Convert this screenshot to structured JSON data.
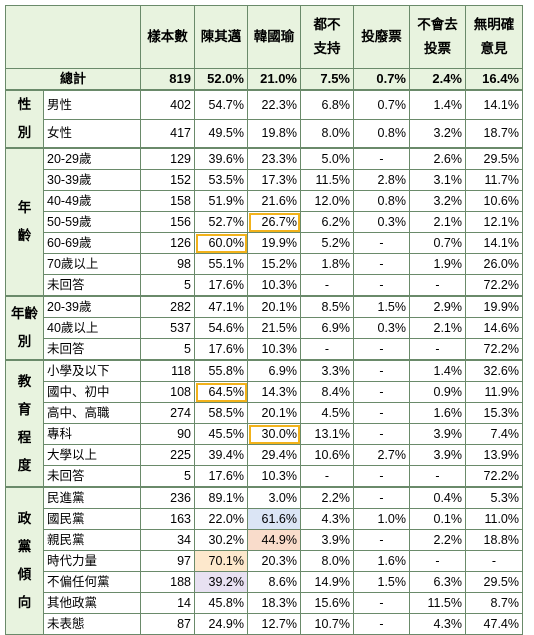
{
  "headers": [
    "樣本數",
    "陳其邁",
    "韓國瑜",
    [
      "都不",
      "支持"
    ],
    "投廢票",
    [
      "不會去",
      "投票"
    ],
    [
      "無明確",
      "意見"
    ]
  ],
  "total": {
    "label": "總計",
    "values": [
      "819",
      "52.0%",
      "21.0%",
      "7.5%",
      "0.7%",
      "2.4%",
      "16.4%"
    ]
  },
  "groups": [
    {
      "name": [
        "性",
        "別"
      ],
      "rows": [
        {
          "label": "男性",
          "values": [
            "402",
            "54.7%",
            "22.3%",
            "6.8%",
            "0.7%",
            "1.4%",
            "14.1%"
          ]
        },
        {
          "label": "女性",
          "values": [
            "417",
            "49.5%",
            "19.8%",
            "8.0%",
            "0.8%",
            "3.2%",
            "18.7%"
          ]
        }
      ]
    },
    {
      "name": [
        "年",
        "齡"
      ],
      "rows": [
        {
          "label": "20-29歲",
          "values": [
            "129",
            "39.6%",
            "23.3%",
            "5.0%",
            "-",
            "2.6%",
            "29.5%"
          ]
        },
        {
          "label": "30-39歲",
          "values": [
            "152",
            "53.5%",
            "17.3%",
            "11.5%",
            "2.8%",
            "3.1%",
            "11.7%"
          ]
        },
        {
          "label": "40-49歲",
          "values": [
            "158",
            "51.9%",
            "21.6%",
            "12.0%",
            "0.8%",
            "3.2%",
            "10.6%"
          ]
        },
        {
          "label": "50-59歲",
          "values": [
            "156",
            "52.7%",
            "26.7%",
            "6.2%",
            "0.3%",
            "2.1%",
            "12.1%"
          ],
          "hl": [
            2
          ]
        },
        {
          "label": "60-69歲",
          "values": [
            "126",
            "60.0%",
            "19.9%",
            "5.2%",
            "-",
            "0.7%",
            "14.1%"
          ],
          "hl": [
            1
          ]
        },
        {
          "label": "70歲以上",
          "values": [
            "98",
            "55.1%",
            "15.2%",
            "1.8%",
            "-",
            "1.9%",
            "26.0%"
          ]
        },
        {
          "label": "未回答",
          "values": [
            "5",
            "17.6%",
            "10.3%",
            "-",
            "-",
            "-",
            "72.2%"
          ]
        }
      ]
    },
    {
      "name": [
        "年齡",
        "別"
      ],
      "rows": [
        {
          "label": "20-39歲",
          "values": [
            "282",
            "47.1%",
            "20.1%",
            "8.5%",
            "1.5%",
            "2.9%",
            "19.9%"
          ]
        },
        {
          "label": "40歲以上",
          "values": [
            "537",
            "54.6%",
            "21.5%",
            "6.9%",
            "0.3%",
            "2.1%",
            "14.6%"
          ]
        },
        {
          "label": "未回答",
          "values": [
            "5",
            "17.6%",
            "10.3%",
            "-",
            "-",
            "-",
            "72.2%"
          ]
        }
      ]
    },
    {
      "name": [
        "教",
        "育",
        "程",
        "度"
      ],
      "rows": [
        {
          "label": "小學及以下",
          "values": [
            "118",
            "55.8%",
            "6.9%",
            "3.3%",
            "-",
            "1.4%",
            "32.6%"
          ]
        },
        {
          "label": "國中、初中",
          "values": [
            "108",
            "64.5%",
            "14.3%",
            "8.4%",
            "-",
            "0.9%",
            "11.9%"
          ],
          "hl": [
            1
          ]
        },
        {
          "label": "高中、高職",
          "values": [
            "274",
            "58.5%",
            "20.1%",
            "4.5%",
            "-",
            "1.6%",
            "15.3%"
          ]
        },
        {
          "label": "專科",
          "values": [
            "90",
            "45.5%",
            "30.0%",
            "13.1%",
            "-",
            "3.9%",
            "7.4%"
          ],
          "hl": [
            2
          ]
        },
        {
          "label": "大學以上",
          "values": [
            "225",
            "39.4%",
            "29.4%",
            "10.6%",
            "2.7%",
            "3.9%",
            "13.9%"
          ]
        },
        {
          "label": "未回答",
          "values": [
            "5",
            "17.6%",
            "10.3%",
            "-",
            "-",
            "-",
            "72.2%"
          ]
        }
      ]
    },
    {
      "name": [
        "政",
        "黨",
        "傾",
        "向"
      ],
      "rows": [
        {
          "label": "民進黨",
          "values": [
            "236",
            "89.1%",
            "3.0%",
            "2.2%",
            "-",
            "0.4%",
            "5.3%"
          ]
        },
        {
          "label": "國民黨",
          "values": [
            "163",
            "22.0%",
            "61.6%",
            "4.3%",
            "1.0%",
            "0.1%",
            "11.0%"
          ],
          "bg": {
            "2": "blue"
          }
        },
        {
          "label": "親民黨",
          "values": [
            "34",
            "30.2%",
            "44.9%",
            "3.9%",
            "-",
            "2.2%",
            "18.8%"
          ],
          "bg": {
            "2": "pink"
          }
        },
        {
          "label": "時代力量",
          "values": [
            "97",
            "70.1%",
            "20.3%",
            "8.0%",
            "1.6%",
            "-",
            "-"
          ],
          "bg": {
            "1": "peach"
          }
        },
        {
          "label": "不偏任何黨",
          "values": [
            "188",
            "39.2%",
            "8.6%",
            "14.9%",
            "1.5%",
            "6.3%",
            "29.5%"
          ],
          "bg": {
            "1": "lav"
          }
        },
        {
          "label": "其他政黨",
          "values": [
            "14",
            "45.8%",
            "18.3%",
            "15.6%",
            "-",
            "11.5%",
            "8.7%"
          ]
        },
        {
          "label": "未表態",
          "values": [
            "87",
            "24.9%",
            "12.7%",
            "10.7%",
            "-",
            "4.3%",
            "47.4%"
          ]
        }
      ]
    }
  ]
}
